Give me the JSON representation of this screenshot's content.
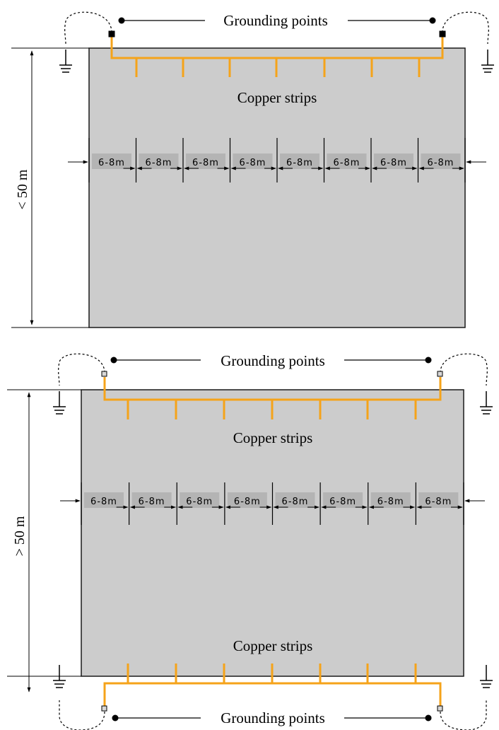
{
  "colors": {
    "panel_fill": "#cccccc",
    "panel_stroke": "#1a1a1a",
    "copper": "#f5a31a",
    "label_bg": "#b4b4b4",
    "line": "#000000"
  },
  "diagrams": [
    {
      "height_label": "< 50 m",
      "grounding_label": "Grounding points",
      "copper_label": "Copper strips",
      "spacing_labels": [
        "6-8m",
        "6-8m",
        "6-8m",
        "6-8m",
        "6-8m",
        "6-8m",
        "6-8m",
        "6-8m"
      ],
      "grounding_point_style": "filled"
    },
    {
      "height_label": "> 50 m",
      "grounding_label_top": "Grounding points",
      "grounding_label_bottom": "Grounding points",
      "copper_label_top": "Copper strips",
      "copper_label_bottom": "Copper strips",
      "spacing_labels": [
        "6-8m",
        "6-8m",
        "6-8m",
        "6-8m",
        "6-8m",
        "6-8m",
        "6-8m",
        "6-8m"
      ],
      "grounding_point_style": "hollow"
    }
  ],
  "icons": [
    "ground-symbol-icon",
    "grounding-point-marker-icon",
    "arrow-icon"
  ]
}
